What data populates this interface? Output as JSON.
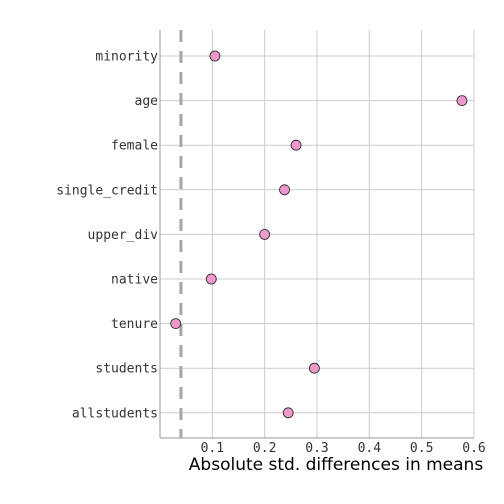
{
  "chart_data": {
    "type": "scatter",
    "title": "",
    "xlabel": "Absolute std. differences in means",
    "ylabel": "",
    "xlim": [
      0,
      0.6
    ],
    "x_ticks": [
      "0.1",
      "0.2",
      "0.3",
      "0.4",
      "0.5",
      "0.6"
    ],
    "x_tick_values": [
      0.1,
      0.2,
      0.3,
      0.4,
      0.5,
      0.6
    ],
    "categories": [
      "minority",
      "age",
      "female",
      "single_credit",
      "upper_div",
      "native",
      "tenure",
      "students",
      "allstudents"
    ],
    "values": [
      0.105,
      0.577,
      0.26,
      0.238,
      0.2,
      0.098,
      0.03,
      0.295,
      0.245
    ],
    "reference_line": 0.04,
    "grid": true,
    "legend": "none",
    "colors": {
      "point_fill": "#ee99cc",
      "point_stroke": "#222222",
      "grid": "#cccccc",
      "reference_line": "#a6a6a6",
      "axis": "#999999"
    }
  }
}
